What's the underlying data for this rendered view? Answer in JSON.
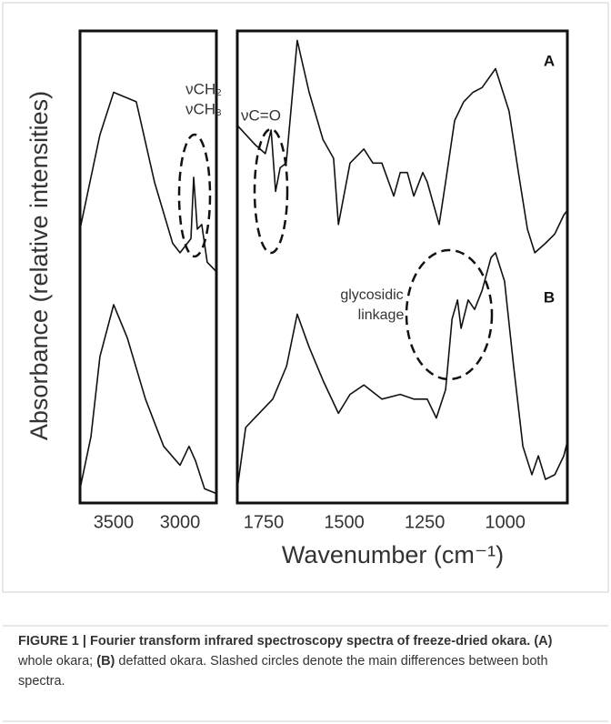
{
  "figure": {
    "ylabel": "Absorbance (relative intensities)",
    "xlabel": "Wavenumber (cm⁻¹)"
  },
  "chart_data": [
    {
      "type": "line",
      "xlim": [
        3753,
        2726
      ],
      "ylim": [
        0,
        100
      ],
      "xticks": [
        3500,
        3000
      ],
      "color": "#111111",
      "annotations": [
        "νCH₂",
        "νCH₃"
      ],
      "series": [
        {
          "x": [
            3753,
            3603,
            3500,
            3329,
            3192,
            3055,
            3000,
            2918,
            2897,
            2870,
            2836,
            2795,
            2726
          ],
          "values": [
            58,
            78,
            87,
            85,
            68,
            55,
            53,
            56,
            69,
            58,
            59,
            51,
            49
          ]
        },
        {
          "x": [
            3753,
            3671,
            3603,
            3500,
            3397,
            3260,
            3123,
            3000,
            2932,
            2884,
            2815,
            2726
          ],
          "values": [
            3,
            14,
            31,
            42,
            35,
            22,
            12,
            8,
            12,
            9,
            3,
            2
          ]
        }
      ]
    },
    {
      "type": "line",
      "xlim": [
        1832,
        807
      ],
      "ylim": [
        0,
        100
      ],
      "xticks": [
        1750,
        1500,
        1250,
        1000
      ],
      "color": "#111111",
      "annotations": [
        "νC=O",
        "glycosidic",
        "linkage"
      ],
      "series": [
        {
          "name": "A",
          "x": [
            1832,
            1778,
            1745,
            1727,
            1713,
            1699,
            1680,
            1646,
            1609,
            1566,
            1533,
            1518,
            1482,
            1439,
            1411,
            1383,
            1346,
            1326,
            1304,
            1284,
            1256,
            1242,
            1205,
            1185,
            1157,
            1129,
            1100,
            1072,
            1030,
            988,
            959,
            931,
            908,
            875,
            846,
            818,
            807
          ],
          "values": [
            80,
            76,
            74,
            79,
            66,
            71,
            72,
            98,
            87,
            77,
            73,
            59,
            72,
            75,
            72,
            72,
            65,
            70,
            70,
            65,
            70,
            68,
            59,
            68,
            81,
            85,
            87,
            88,
            92,
            83,
            70,
            58,
            53,
            55,
            57,
            61,
            62
          ]
        },
        {
          "name": "B",
          "x": [
            1832,
            1806,
            1778,
            1722,
            1679,
            1646,
            1609,
            1566,
            1518,
            1482,
            1439,
            1383,
            1326,
            1284,
            1242,
            1214,
            1185,
            1165,
            1148,
            1137,
            1115,
            1095,
            1072,
            1044,
            1030,
            1002,
            974,
            945,
            917,
            897,
            875,
            846,
            818,
            807
          ],
          "values": [
            3,
            16,
            18,
            22,
            29,
            40,
            33,
            26,
            19,
            23,
            25,
            22,
            23,
            22,
            22,
            18,
            24,
            39,
            43,
            37,
            43,
            41,
            45,
            52,
            53,
            47,
            29,
            12,
            6,
            10,
            5,
            6,
            10,
            13
          ]
        }
      ]
    }
  ],
  "caption": [
    {
      "text": "FIGURE 1 | Fourier transform infrared spectroscopy spectra of freeze-dried okara.",
      "bold": true
    },
    {
      "text": "(A)",
      "bold": true
    },
    {
      "text": "whole okara;",
      "bold": false
    },
    {
      "text": "(B)",
      "bold": true
    },
    {
      "text": "defatted okara. Slashed circles denote the main differences between both spectra.",
      "bold": false
    }
  ]
}
